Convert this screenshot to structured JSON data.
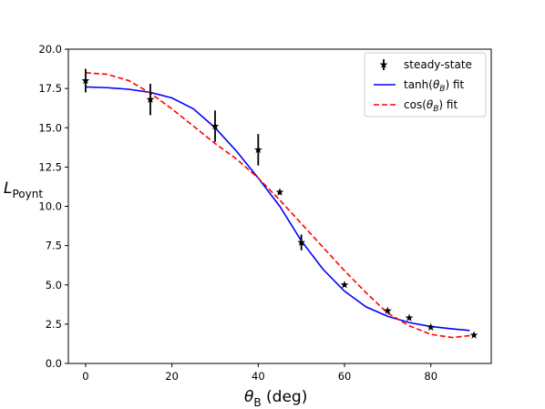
{
  "chart_data": {
    "type": "scatter",
    "xlabel": "θB (deg)",
    "ylabel": "LPoynt",
    "xlim": [
      -4,
      94
    ],
    "ylim": [
      0,
      20
    ],
    "xticks": [
      "0",
      "20",
      "40",
      "60",
      "80"
    ],
    "yticks": [
      "0.0",
      "2.5",
      "5.0",
      "7.5",
      "10.0",
      "12.5",
      "15.0",
      "17.5",
      "20.0"
    ],
    "grid": false,
    "legend_position": "top-right",
    "series": [
      {
        "name": "steady-state",
        "kind": "errorbar",
        "color": "#000000",
        "marker": "star",
        "x": [
          0,
          15,
          30,
          40,
          45,
          50,
          60,
          70,
          75,
          80,
          90
        ],
        "y": [
          18.0,
          16.8,
          15.1,
          13.6,
          10.9,
          7.7,
          5.0,
          3.35,
          2.9,
          2.3,
          1.8
        ],
        "yerr": [
          0.75,
          1.0,
          1.0,
          1.0,
          0.15,
          0.5,
          0.1,
          0.1,
          0.1,
          0.1,
          0.05
        ]
      },
      {
        "name": "tanh(θB) fit",
        "kind": "line",
        "color": "#0000ff",
        "style": "solid",
        "x": [
          0,
          5,
          10,
          15,
          20,
          25,
          30,
          35,
          40,
          45,
          50,
          55,
          60,
          65,
          70,
          75,
          80,
          85,
          89
        ],
        "y": [
          17.6,
          17.55,
          17.45,
          17.25,
          16.9,
          16.2,
          15.0,
          13.5,
          11.8,
          10.0,
          7.8,
          6.0,
          4.6,
          3.6,
          3.0,
          2.6,
          2.35,
          2.2,
          2.1
        ]
      },
      {
        "name": "cos(θB) fit",
        "kind": "line",
        "color": "#ff0000",
        "style": "dashed",
        "x": [
          0,
          5,
          10,
          15,
          20,
          25,
          30,
          35,
          40,
          45,
          50,
          55,
          60,
          65,
          70,
          75,
          80,
          85,
          90
        ],
        "y": [
          18.5,
          18.4,
          18.0,
          17.2,
          16.2,
          15.1,
          14.0,
          13.0,
          11.8,
          10.4,
          8.9,
          7.4,
          5.9,
          4.5,
          3.2,
          2.4,
          1.85,
          1.65,
          1.8
        ]
      }
    ]
  }
}
